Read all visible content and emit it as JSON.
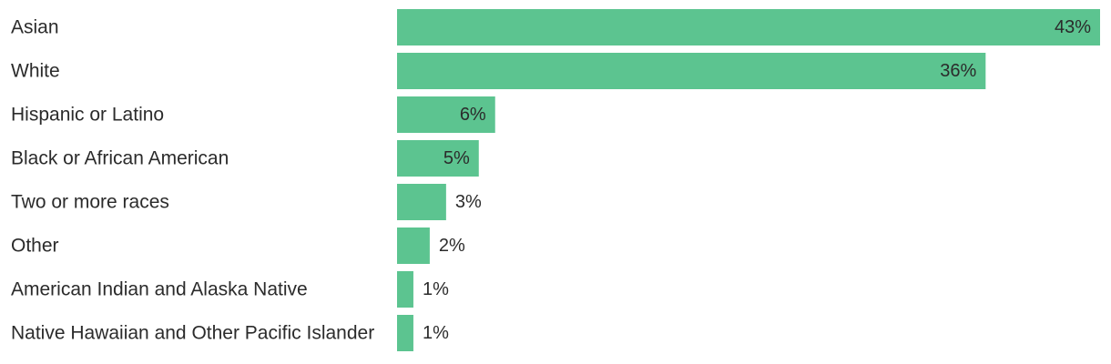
{
  "chart_data": {
    "type": "bar",
    "orientation": "horizontal",
    "categories": [
      "Asian",
      "White",
      "Hispanic or Latino",
      "Black or African American",
      "Two or more races",
      "Other",
      "American Indian and Alaska Native",
      "Native Hawaiian and Other Pacific Islander"
    ],
    "values": [
      43,
      36,
      6,
      5,
      3,
      2,
      1,
      1
    ],
    "value_labels": [
      "43%",
      "36%",
      "6%",
      "5%",
      "3%",
      "2%",
      "1%",
      "1%"
    ],
    "unit": "%",
    "xlim": [
      0,
      43
    ],
    "grid": false,
    "legend": "none",
    "bar_color": "#5cc490",
    "text_color": "#2b2b2b"
  }
}
